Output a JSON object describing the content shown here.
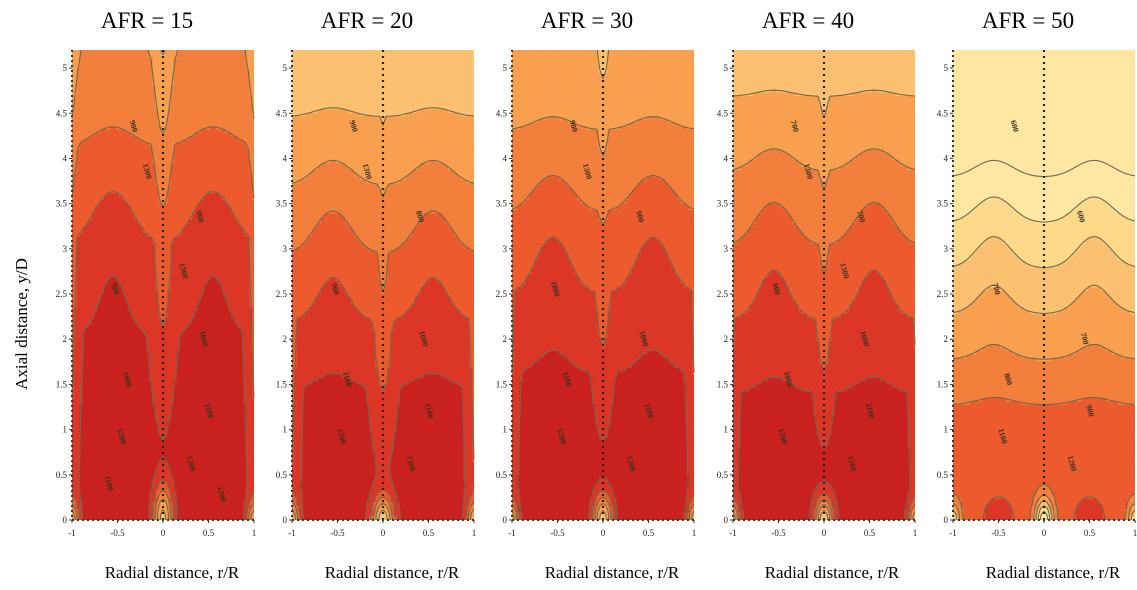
{
  "y_axis_title": "Axial distance, y/D",
  "colors": {
    "levels": [
      "#fde7a2",
      "#fdd98a",
      "#fcc170",
      "#f8a04f",
      "#f37f3d",
      "#ec5b2e",
      "#dc3627",
      "#c9221f"
    ],
    "line": "#6d6a4e"
  },
  "chart_data": [
    {
      "type": "contour",
      "title": "AFR = 15",
      "xlabel": "Radial distance, r/R",
      "ylabel": "Axial distance, y/D",
      "xlim": [
        -1,
        1
      ],
      "ylim": [
        0,
        5.2
      ],
      "x_ticks": [
        "-1",
        "-0.5",
        "0",
        "0.5",
        "1"
      ],
      "y_ticks": [
        "0",
        "0.5",
        "1",
        "1.5",
        "2",
        "2.5",
        "3",
        "3.5",
        "4",
        "4.5",
        "5"
      ],
      "contour_labels": [
        "900",
        "900",
        "900",
        "1000",
        "1000",
        "1100",
        "1200",
        "1300",
        "1300",
        "1300",
        "1100",
        "1200"
      ],
      "params": {
        "peakT": 1380,
        "t1": 1380,
        "tDecay": 0.17,
        "core": 160,
        "cH": 0.2,
        "notchH": 0.38,
        "notchW": 0.11,
        "baseT": 0
      }
    },
    {
      "type": "contour",
      "title": "AFR = 20",
      "xlabel": "Radial distance, r/R",
      "ylabel": "Axial distance, y/D",
      "xlim": [
        -1,
        1
      ],
      "ylim": [
        0,
        5.2
      ],
      "x_ticks": [
        "-1",
        "-0.5",
        "0",
        "0.5",
        "1"
      ],
      "y_ticks": [
        "0",
        "0.5",
        "1",
        "1.5",
        "2",
        "2.5",
        "3",
        "3.5",
        "4",
        "4.5",
        "5"
      ],
      "contour_labels": [
        "900",
        "800",
        "900",
        "1000",
        "1100",
        "1100",
        "1200",
        "1300",
        "1300"
      ],
      "params": {
        "peakT": 1360,
        "t1": 1340,
        "tDecay": 0.24,
        "core": 230,
        "cH": 0.14,
        "notchH": 0.28,
        "notchW": 0.12,
        "baseT": 0
      }
    },
    {
      "type": "contour",
      "title": "AFR = 30",
      "xlabel": "Radial distance, r/R",
      "ylabel": "Axial distance, y/D",
      "xlim": [
        -1,
        1
      ],
      "ylim": [
        0,
        5.2
      ],
      "x_ticks": [
        "-1",
        "-0.5",
        "0",
        "0.5",
        "1"
      ],
      "y_ticks": [
        "0",
        "0.5",
        "1",
        "1.5",
        "2",
        "2.5",
        "3",
        "3.5",
        "4",
        "4.5",
        "5"
      ],
      "contour_labels": [
        "900",
        "900",
        "1000",
        "1000",
        "1100",
        "1100",
        "1200",
        "1300",
        "1300"
      ],
      "params": {
        "peakT": 1390,
        "t1": 1350,
        "tDecay": 0.2,
        "core": 200,
        "cH": 0.17,
        "notchH": 0.3,
        "notchW": 0.11,
        "baseT": 80
      }
    },
    {
      "type": "contour",
      "title": "AFR = 40",
      "xlabel": "Radial distance, r/R",
      "ylabel": "Axial distance, y/D",
      "xlim": [
        -1,
        1
      ],
      "ylim": [
        0,
        5.2
      ],
      "x_ticks": [
        "-1",
        "-0.5",
        "0",
        "0.5",
        "1"
      ],
      "y_ticks": [
        "0",
        "0.5",
        "1",
        "1.5",
        "2",
        "2.5",
        "3",
        "3.5",
        "4",
        "4.5",
        "5"
      ],
      "contour_labels": [
        "700",
        "700",
        "900",
        "1000",
        "1000",
        "1100",
        "1200",
        "1300",
        "1300",
        "1300"
      ],
      "params": {
        "peakT": 1400,
        "t1": 1330,
        "tDecay": 0.22,
        "core": 260,
        "cH": 0.12,
        "notchH": 0.26,
        "notchW": 0.1,
        "baseT": 40
      }
    },
    {
      "type": "contour",
      "title": "AFR = 50",
      "xlabel": "Radial distance, r/R",
      "ylabel": "Axial distance, y/D",
      "xlim": [
        -1,
        1
      ],
      "ylim": [
        0,
        5.2
      ],
      "x_ticks": [
        "-1",
        "-0.5",
        "0",
        "0.5",
        "1"
      ],
      "y_ticks": [
        "0",
        "0.5",
        "1",
        "1.5",
        "2",
        "2.5",
        "3",
        "3.5",
        "4",
        "4.5",
        "5"
      ],
      "contour_labels": [
        "600",
        "600",
        "700",
        "700",
        "800",
        "900",
        "1100",
        "1200"
      ],
      "params": {
        "peakT": 1380,
        "t1": 1130,
        "tDecay": 0.36,
        "core": 260,
        "cH": 0.06,
        "notchH": 0.24,
        "notchW": 0.1,
        "baseT": 90
      }
    }
  ]
}
